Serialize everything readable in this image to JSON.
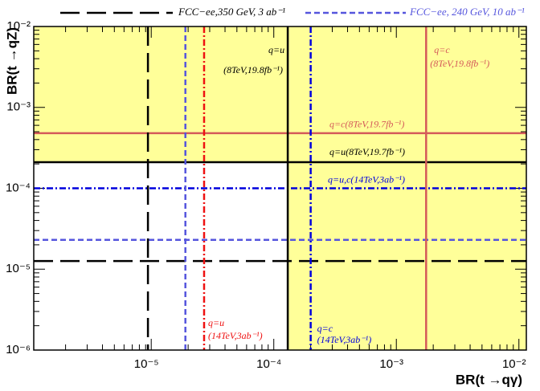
{
  "chart_data": {
    "type": "limits",
    "xlabel": "BR(t →qγ)",
    "ylabel": "BR(t →qZ)",
    "log_x": true,
    "log_y": true,
    "xlim": [
      1.1e-06,
      0.0115
    ],
    "ylim": [
      1e-06,
      0.01
    ],
    "xticks": [
      {
        "value": 1e-05,
        "label": "10⁻⁵"
      },
      {
        "value": 0.0001,
        "label": "10⁻⁴"
      },
      {
        "value": 0.001,
        "label": "10⁻³"
      },
      {
        "value": 0.01,
        "label": "10⁻²"
      }
    ],
    "yticks": [
      {
        "value": 1e-06,
        "label": "10⁻⁶"
      },
      {
        "value": 1e-05,
        "label": "10⁻⁵"
      },
      {
        "value": 0.0001,
        "label": "10⁻⁴"
      },
      {
        "value": 0.001,
        "label": "10⁻³"
      },
      {
        "value": 0.01,
        "label": "10⁻²"
      }
    ],
    "shade_color": "#ffff99",
    "legend": [
      {
        "name": "FCC−ee,350 GeV, 3 ab⁻¹",
        "color": "#000000",
        "style": "long-dash"
      },
      {
        "name": "FCC−ee, 240 GeV, 10 ab⁻¹",
        "color": "#5555dd",
        "style": "dash"
      }
    ],
    "hlines": [
      {
        "value": 1.26e-05,
        "color": "#000000",
        "style": "long-dash"
      },
      {
        "value": 2.3e-05,
        "color": "#5555dd",
        "style": "dash"
      },
      {
        "value": 0.0001,
        "color": "#0000dd",
        "style": "dash-dot",
        "label": [
          "q=u,c(14TeV,3ab⁻¹)"
        ]
      },
      {
        "value": 0.00021,
        "color": "#000000",
        "style": "solid",
        "label": [
          "q=u(8TeV,19.7fb⁻¹)"
        ]
      },
      {
        "value": 0.00048,
        "color": "#d45a5a",
        "style": "solid",
        "label": [
          "q=c(8TeV,19.7fb⁻¹)"
        ]
      }
    ],
    "vlines": [
      {
        "value": 9.4e-06,
        "color": "#000000",
        "style": "long-dash"
      },
      {
        "value": 1.9e-05,
        "color": "#5555dd",
        "style": "dash"
      },
      {
        "value": 2.7e-05,
        "color": "#ee1111",
        "style": "dash-dot",
        "label": [
          "q=u",
          "(14TeV,3ab⁻¹)"
        ]
      },
      {
        "value": 0.00013,
        "color": "#000000",
        "style": "solid",
        "label": [
          "q=u",
          "(8TeV,19.8fb⁻¹)"
        ]
      },
      {
        "value": 0.0002,
        "color": "#0000dd",
        "style": "dash-dot",
        "label": [
          "q=c",
          "(14TeV,3ab⁻¹)"
        ]
      },
      {
        "value": 0.00175,
        "color": "#d45a5a",
        "style": "solid",
        "label": [
          "q=c",
          "(8TeV,19.8fb⁻¹)"
        ]
      }
    ]
  }
}
